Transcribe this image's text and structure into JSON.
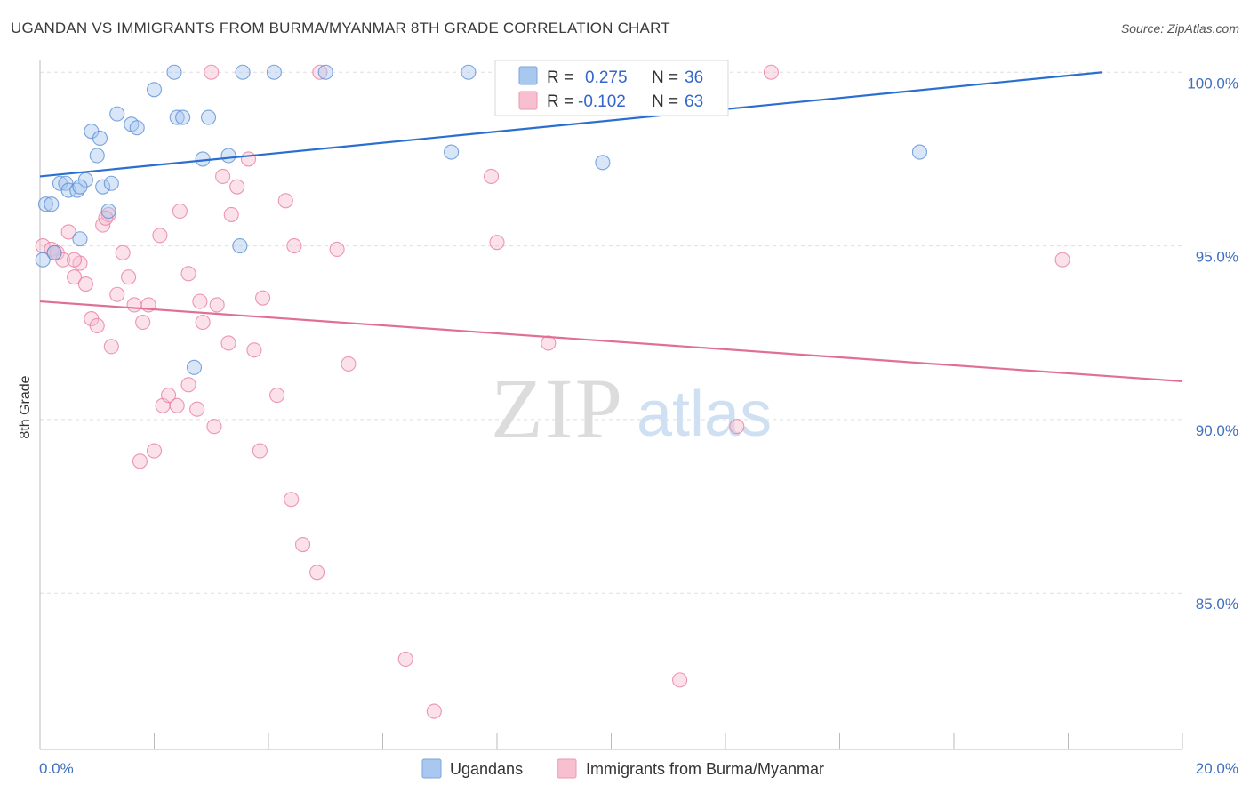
{
  "title": "UGANDAN VS IMMIGRANTS FROM BURMA/MYANMAR 8TH GRADE CORRELATION CHART",
  "source": "Source: ZipAtlas.com",
  "watermark": {
    "zip": "ZIP",
    "atlas": "atlas"
  },
  "legend_top": [
    {
      "r_label": "R = ",
      "r_value": "0.275",
      "n_label": "N = ",
      "n_value": "36",
      "color": "#a9c8f0",
      "stroke": "#7aa6dc"
    },
    {
      "r_label": "R = ",
      "r_value": "-0.102",
      "n_label": "N = ",
      "n_value": "63",
      "color": "#f7bfd0",
      "stroke": "#ea9ab3"
    }
  ],
  "legend_bottom": [
    {
      "label": "Ugandans",
      "color": "#a9c8f0",
      "stroke": "#7aa6dc"
    },
    {
      "label": "Immigrants from Burma/Myanmar",
      "color": "#f7bfd0",
      "stroke": "#ea9ab3"
    }
  ],
  "chart_data": {
    "type": "scatter",
    "title": "UGANDAN VS IMMIGRANTS FROM BURMA/MYANMAR 8TH GRADE CORRELATION CHART",
    "xlabel": "",
    "ylabel": "8th Grade",
    "xlim": [
      0.0,
      20.0
    ],
    "ylim": [
      80.5,
      100.8
    ],
    "x_tick_labels": [
      "0.0%",
      "20.0%"
    ],
    "y_ticks": [
      85.0,
      90.0,
      95.0,
      100.0
    ],
    "y_tick_labels": [
      "85.0%",
      "90.0%",
      "95.0%",
      "100.0%"
    ],
    "grid": "horizontal dashed",
    "legend_position": "top-center",
    "series": [
      {
        "name": "Ugandans",
        "color": "#5b8fd6",
        "fill": "#a9c8f0",
        "trend": {
          "x": [
            0.0,
            18.6
          ],
          "y": [
            97.0,
            100.0
          ],
          "color": "#2a6fcf"
        },
        "points": [
          [
            0.05,
            94.6
          ],
          [
            0.1,
            96.2
          ],
          [
            0.2,
            96.2
          ],
          [
            0.35,
            96.8
          ],
          [
            0.45,
            96.8
          ],
          [
            0.5,
            96.6
          ],
          [
            0.65,
            96.6
          ],
          [
            0.7,
            95.2
          ],
          [
            0.8,
            96.9
          ],
          [
            0.9,
            98.3
          ],
          [
            1.0,
            97.6
          ],
          [
            1.05,
            98.1
          ],
          [
            1.1,
            96.7
          ],
          [
            1.25,
            96.8
          ],
          [
            1.2,
            96.0
          ],
          [
            1.35,
            98.8
          ],
          [
            1.6,
            98.5
          ],
          [
            1.7,
            98.4
          ],
          [
            2.0,
            99.5
          ],
          [
            2.35,
            100.0
          ],
          [
            2.4,
            98.7
          ],
          [
            2.5,
            98.7
          ],
          [
            2.85,
            97.5
          ],
          [
            2.95,
            98.7
          ],
          [
            3.3,
            97.6
          ],
          [
            3.5,
            95.0
          ],
          [
            3.55,
            100.0
          ],
          [
            4.1,
            100.0
          ],
          [
            5.0,
            100.0
          ],
          [
            7.5,
            100.0
          ],
          [
            7.2,
            97.7
          ],
          [
            9.85,
            97.4
          ],
          [
            15.4,
            97.7
          ],
          [
            2.7,
            91.5
          ],
          [
            0.25,
            94.8
          ],
          [
            0.7,
            96.7
          ]
        ]
      },
      {
        "name": "Immigrants from Burma/Myanmar",
        "color": "#e87ea0",
        "fill": "#f7bfd0",
        "trend": {
          "x": [
            0.0,
            20.0
          ],
          "y": [
            93.4,
            91.1
          ],
          "color": "#e06f96"
        },
        "points": [
          [
            0.05,
            95.0
          ],
          [
            0.2,
            94.9
          ],
          [
            0.3,
            94.8
          ],
          [
            0.4,
            94.6
          ],
          [
            0.5,
            95.4
          ],
          [
            0.6,
            94.1
          ],
          [
            0.7,
            94.5
          ],
          [
            0.8,
            93.9
          ],
          [
            0.9,
            92.9
          ],
          [
            1.0,
            92.7
          ],
          [
            1.1,
            95.6
          ],
          [
            1.2,
            95.9
          ],
          [
            1.25,
            92.1
          ],
          [
            1.35,
            93.6
          ],
          [
            1.45,
            94.8
          ],
          [
            1.55,
            94.1
          ],
          [
            1.65,
            93.3
          ],
          [
            1.75,
            88.8
          ],
          [
            1.8,
            92.8
          ],
          [
            1.9,
            93.3
          ],
          [
            2.0,
            89.1
          ],
          [
            2.1,
            95.3
          ],
          [
            2.15,
            90.4
          ],
          [
            2.25,
            90.7
          ],
          [
            2.4,
            90.4
          ],
          [
            2.45,
            96.0
          ],
          [
            2.6,
            91.0
          ],
          [
            2.6,
            94.2
          ],
          [
            2.75,
            90.3
          ],
          [
            2.8,
            93.4
          ],
          [
            2.85,
            92.8
          ],
          [
            3.0,
            100.0
          ],
          [
            3.05,
            89.8
          ],
          [
            3.1,
            93.3
          ],
          [
            3.2,
            97.0
          ],
          [
            3.3,
            92.2
          ],
          [
            3.35,
            95.9
          ],
          [
            3.45,
            96.7
          ],
          [
            3.65,
            97.5
          ],
          [
            3.75,
            92.0
          ],
          [
            3.85,
            89.1
          ],
          [
            3.9,
            93.5
          ],
          [
            4.15,
            90.7
          ],
          [
            4.3,
            96.3
          ],
          [
            4.4,
            87.7
          ],
          [
            4.45,
            95.0
          ],
          [
            4.6,
            86.4
          ],
          [
            4.85,
            85.6
          ],
          [
            4.9,
            100.0
          ],
          [
            5.2,
            94.9
          ],
          [
            5.4,
            91.6
          ],
          [
            6.4,
            83.1
          ],
          [
            6.9,
            81.6
          ],
          [
            7.9,
            97.0
          ],
          [
            8.0,
            95.1
          ],
          [
            8.9,
            92.2
          ],
          [
            11.2,
            82.5
          ],
          [
            12.2,
            89.8
          ],
          [
            12.8,
            100.0
          ],
          [
            17.9,
            94.6
          ],
          [
            0.25,
            94.8
          ],
          [
            0.6,
            94.6
          ],
          [
            1.15,
            95.8
          ]
        ]
      }
    ]
  }
}
